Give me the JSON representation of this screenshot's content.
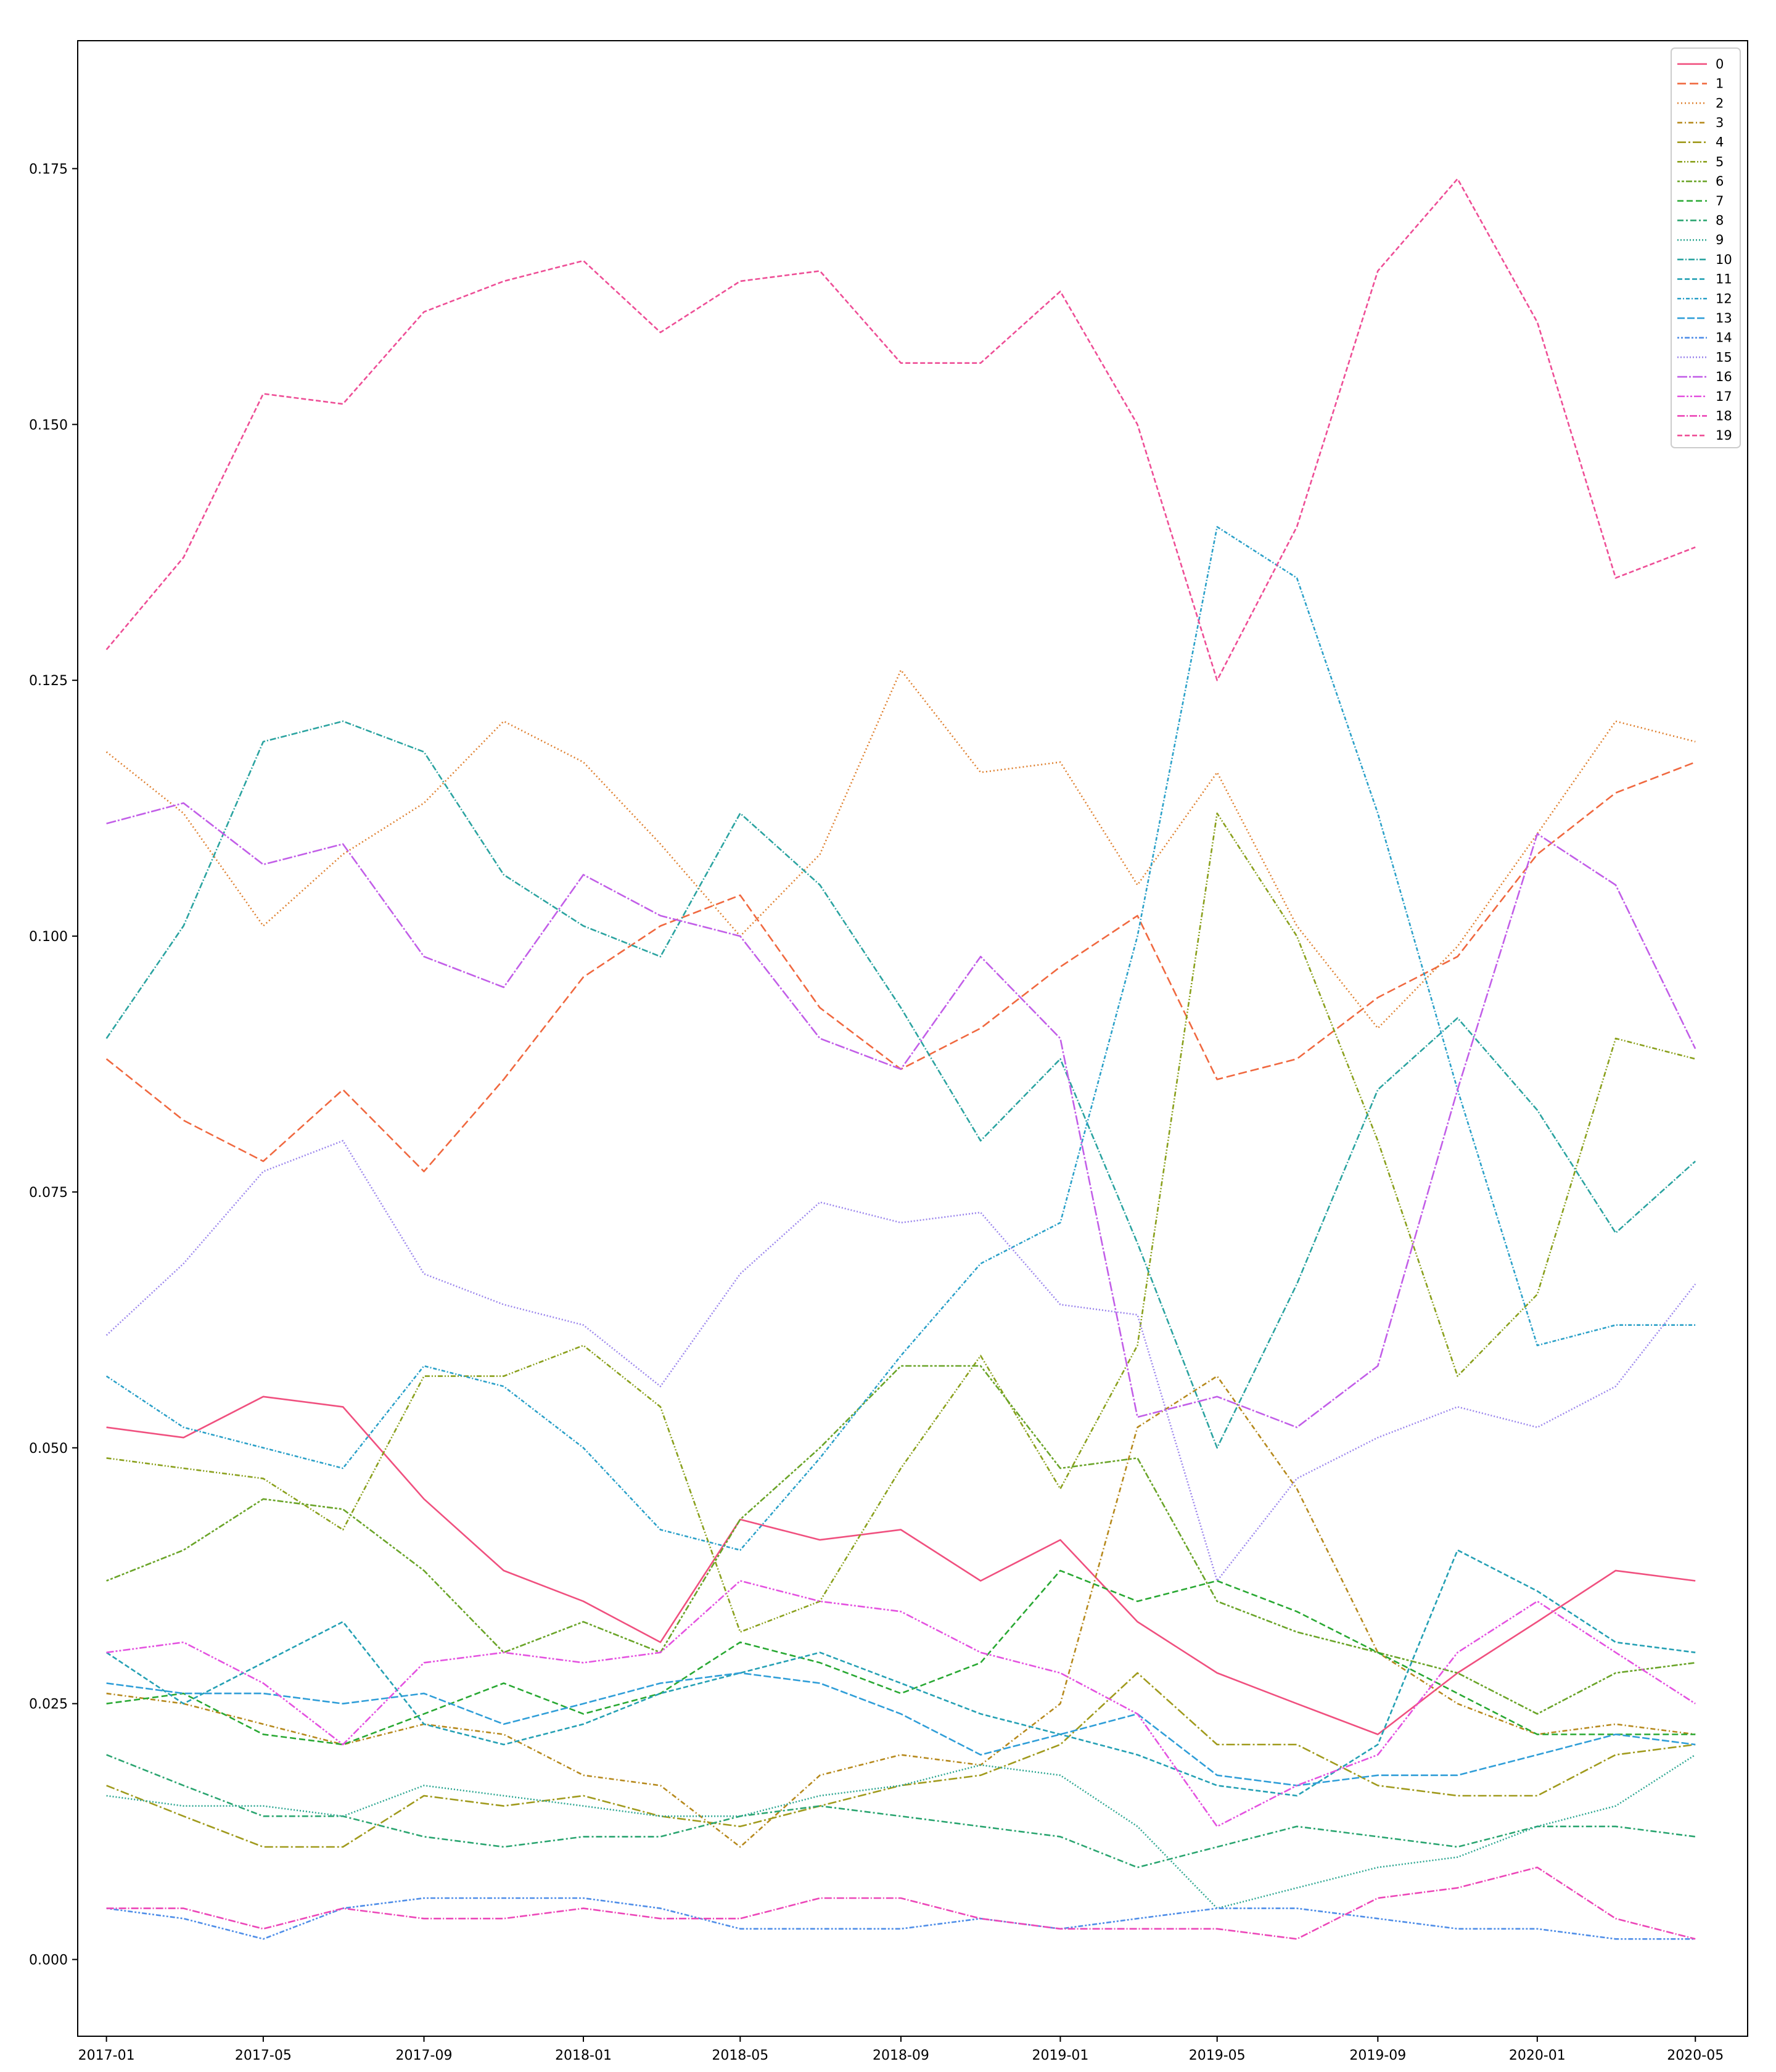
{
  "chart_data": {
    "type": "line",
    "title": "",
    "xlabel": "",
    "ylabel": "",
    "x_ticks": [
      "2017-01",
      "2017-05",
      "2017-09",
      "2018-01",
      "2018-05",
      "2018-09",
      "2019-01",
      "2019-05",
      "2019-09",
      "2020-01",
      "2020-05"
    ],
    "y_ticks": [
      "0.000",
      "0.025",
      "0.050",
      "0.075",
      "0.100",
      "0.125",
      "0.150",
      "0.175"
    ],
    "xlim": [
      "2016-12-10",
      "2020-06-10"
    ],
    "ylim": [
      -0.0075,
      0.1875
    ],
    "grid": false,
    "legend_position": "top-right",
    "x": [
      "2017-01",
      "2017-03",
      "2017-05",
      "2017-07",
      "2017-09",
      "2017-11",
      "2018-01",
      "2018-03",
      "2018-05",
      "2018-07",
      "2018-09",
      "2018-11",
      "2019-01",
      "2019-03",
      "2019-05",
      "2019-07",
      "2019-09",
      "2019-11",
      "2020-01",
      "2020-03",
      "2020-05"
    ],
    "series": [
      {
        "name": "0",
        "color": "#f0507f",
        "dash": "",
        "values": [
          0.052,
          0.051,
          0.055,
          0.054,
          0.045,
          0.038,
          0.035,
          0.031,
          0.043,
          0.041,
          0.042,
          0.037,
          0.041,
          0.033,
          0.028,
          0.025,
          0.022,
          0.028,
          0.033,
          0.038,
          0.037
        ]
      },
      {
        "name": "1",
        "color": "#f0683f",
        "dash": "14,6",
        "values": [
          0.088,
          0.082,
          0.078,
          0.085,
          0.077,
          0.086,
          0.096,
          0.101,
          0.104,
          0.093,
          0.087,
          0.091,
          0.097,
          0.102,
          0.086,
          0.088,
          0.094,
          0.098,
          0.108,
          0.114,
          0.117
        ]
      },
      {
        "name": "2",
        "color": "#de7d2a",
        "dash": "2,4",
        "values": [
          0.118,
          0.112,
          0.101,
          0.108,
          0.113,
          0.121,
          0.117,
          0.109,
          0.1,
          0.108,
          0.126,
          0.116,
          0.117,
          0.105,
          0.116,
          0.101,
          0.091,
          0.099,
          0.11,
          0.121,
          0.119
        ]
      },
      {
        "name": "3",
        "color": "#b6891c",
        "dash": "8,4,2,4",
        "values": [
          0.026,
          0.025,
          0.023,
          0.021,
          0.023,
          0.022,
          0.018,
          0.017,
          0.011,
          0.018,
          0.02,
          0.019,
          0.025,
          0.052,
          0.057,
          0.046,
          0.03,
          0.025,
          0.022,
          0.023,
          0.022
        ]
      },
      {
        "name": "4",
        "color": "#a09a1c",
        "dash": "14,4,3,4",
        "values": [
          0.017,
          0.014,
          0.011,
          0.011,
          0.016,
          0.015,
          0.016,
          0.014,
          0.013,
          0.015,
          0.017,
          0.018,
          0.021,
          0.028,
          0.021,
          0.021,
          0.017,
          0.016,
          0.016,
          0.02,
          0.021
        ]
      },
      {
        "name": "5",
        "color": "#8aa01c",
        "dash": "8,3,2,3,2,3",
        "values": [
          0.049,
          0.048,
          0.047,
          0.042,
          0.057,
          0.057,
          0.06,
          0.054,
          0.032,
          0.035,
          0.048,
          0.059,
          0.046,
          0.06,
          0.112,
          0.1,
          0.08,
          0.057,
          0.065,
          0.09,
          0.088
        ]
      },
      {
        "name": "6",
        "color": "#6aa428",
        "dash": "4,3,4,3,10,3",
        "values": [
          0.037,
          0.04,
          0.045,
          0.044,
          0.038,
          0.03,
          0.033,
          0.03,
          0.043,
          0.05,
          0.058,
          0.058,
          0.048,
          0.049,
          0.035,
          0.032,
          0.03,
          0.028,
          0.024,
          0.028,
          0.029
        ]
      },
      {
        "name": "7",
        "color": "#28a832",
        "dash": "10,5",
        "values": [
          0.025,
          0.026,
          0.022,
          0.021,
          0.024,
          0.027,
          0.024,
          0.026,
          0.031,
          0.029,
          0.026,
          0.029,
          0.038,
          0.035,
          0.037,
          0.034,
          0.03,
          0.026,
          0.022,
          0.022,
          0.022
        ]
      },
      {
        "name": "8",
        "color": "#2aa570",
        "dash": "10,4,3,4",
        "values": [
          0.02,
          0.017,
          0.014,
          0.014,
          0.012,
          0.011,
          0.012,
          0.012,
          0.014,
          0.015,
          0.014,
          0.013,
          0.012,
          0.009,
          0.011,
          0.013,
          0.012,
          0.011,
          0.013,
          0.013,
          0.012
        ]
      },
      {
        "name": "9",
        "color": "#2aa590",
        "dash": "2,3",
        "values": [
          0.016,
          0.015,
          0.015,
          0.014,
          0.017,
          0.016,
          0.015,
          0.014,
          0.014,
          0.016,
          0.017,
          0.019,
          0.018,
          0.013,
          0.005,
          0.007,
          0.009,
          0.01,
          0.013,
          0.015,
          0.02
        ]
      },
      {
        "name": "10",
        "color": "#2aa3a0",
        "dash": "10,3,2,3",
        "values": [
          0.09,
          0.101,
          0.119,
          0.121,
          0.118,
          0.106,
          0.101,
          0.098,
          0.112,
          0.105,
          0.093,
          0.08,
          0.088,
          0.07,
          0.05,
          0.066,
          0.085,
          0.092,
          0.083,
          0.071,
          0.078
        ]
      },
      {
        "name": "11",
        "color": "#24a0b4",
        "dash": "8,4",
        "values": [
          0.03,
          0.025,
          0.029,
          0.033,
          0.023,
          0.021,
          0.023,
          0.026,
          0.028,
          0.03,
          0.027,
          0.024,
          0.022,
          0.02,
          0.017,
          0.016,
          0.021,
          0.04,
          0.036,
          0.031,
          0.03
        ]
      },
      {
        "name": "12",
        "color": "#2aa0c8",
        "dash": "6,3,2,3",
        "values": [
          0.057,
          0.052,
          0.05,
          0.048,
          0.058,
          0.056,
          0.05,
          0.042,
          0.04,
          0.049,
          0.059,
          0.068,
          0.072,
          0.1,
          0.14,
          0.135,
          0.112,
          0.085,
          0.06,
          0.062,
          0.062
        ]
      },
      {
        "name": "13",
        "color": "#2f9ed8",
        "dash": "12,4",
        "values": [
          0.027,
          0.026,
          0.026,
          0.025,
          0.026,
          0.023,
          0.025,
          0.027,
          0.028,
          0.027,
          0.024,
          0.02,
          0.022,
          0.024,
          0.018,
          0.017,
          0.018,
          0.018,
          0.02,
          0.022,
          0.021
        ]
      },
      {
        "name": "14",
        "color": "#4f8ee8",
        "dash": "3,3,3,3,8,3",
        "values": [
          0.005,
          0.004,
          0.002,
          0.005,
          0.006,
          0.006,
          0.006,
          0.005,
          0.003,
          0.003,
          0.003,
          0.004,
          0.003,
          0.004,
          0.005,
          0.005,
          0.004,
          0.003,
          0.003,
          0.002,
          0.002
        ]
      },
      {
        "name": "15",
        "color": "#9a84ec",
        "dash": "2,3",
        "values": [
          0.061,
          0.068,
          0.077,
          0.08,
          0.067,
          0.064,
          0.062,
          0.056,
          0.067,
          0.074,
          0.072,
          0.073,
          0.064,
          0.063,
          0.037,
          0.047,
          0.051,
          0.054,
          0.052,
          0.056,
          0.066
        ]
      },
      {
        "name": "16",
        "color": "#c25ee8",
        "dash": "16,3,3,3",
        "values": [
          0.111,
          0.113,
          0.107,
          0.109,
          0.098,
          0.095,
          0.106,
          0.102,
          0.1,
          0.09,
          0.087,
          0.098,
          0.09,
          0.053,
          0.055,
          0.052,
          0.058,
          0.085,
          0.11,
          0.105,
          0.089
        ]
      },
      {
        "name": "17",
        "color": "#e452e0",
        "dash": "12,3,3,3,3,3",
        "values": [
          0.03,
          0.031,
          0.027,
          0.021,
          0.029,
          0.03,
          0.029,
          0.03,
          0.037,
          0.035,
          0.034,
          0.03,
          0.028,
          0.024,
          0.013,
          0.017,
          0.02,
          0.03,
          0.035,
          0.03,
          0.025
        ]
      },
      {
        "name": "18",
        "color": "#ec46b8",
        "dash": "12,3,2,3",
        "values": [
          0.005,
          0.005,
          0.003,
          0.005,
          0.004,
          0.004,
          0.005,
          0.004,
          0.004,
          0.006,
          0.006,
          0.004,
          0.003,
          0.003,
          0.003,
          0.002,
          0.006,
          0.007,
          0.009,
          0.004,
          0.002
        ]
      },
      {
        "name": "19",
        "color": "#ee4e96",
        "dash": "8,4",
        "values": [
          0.128,
          0.137,
          0.153,
          0.152,
          0.161,
          0.164,
          0.166,
          0.159,
          0.164,
          0.165,
          0.156,
          0.156,
          0.163,
          0.15,
          0.125,
          0.14,
          0.165,
          0.174,
          0.16,
          0.135,
          0.138
        ]
      }
    ]
  }
}
